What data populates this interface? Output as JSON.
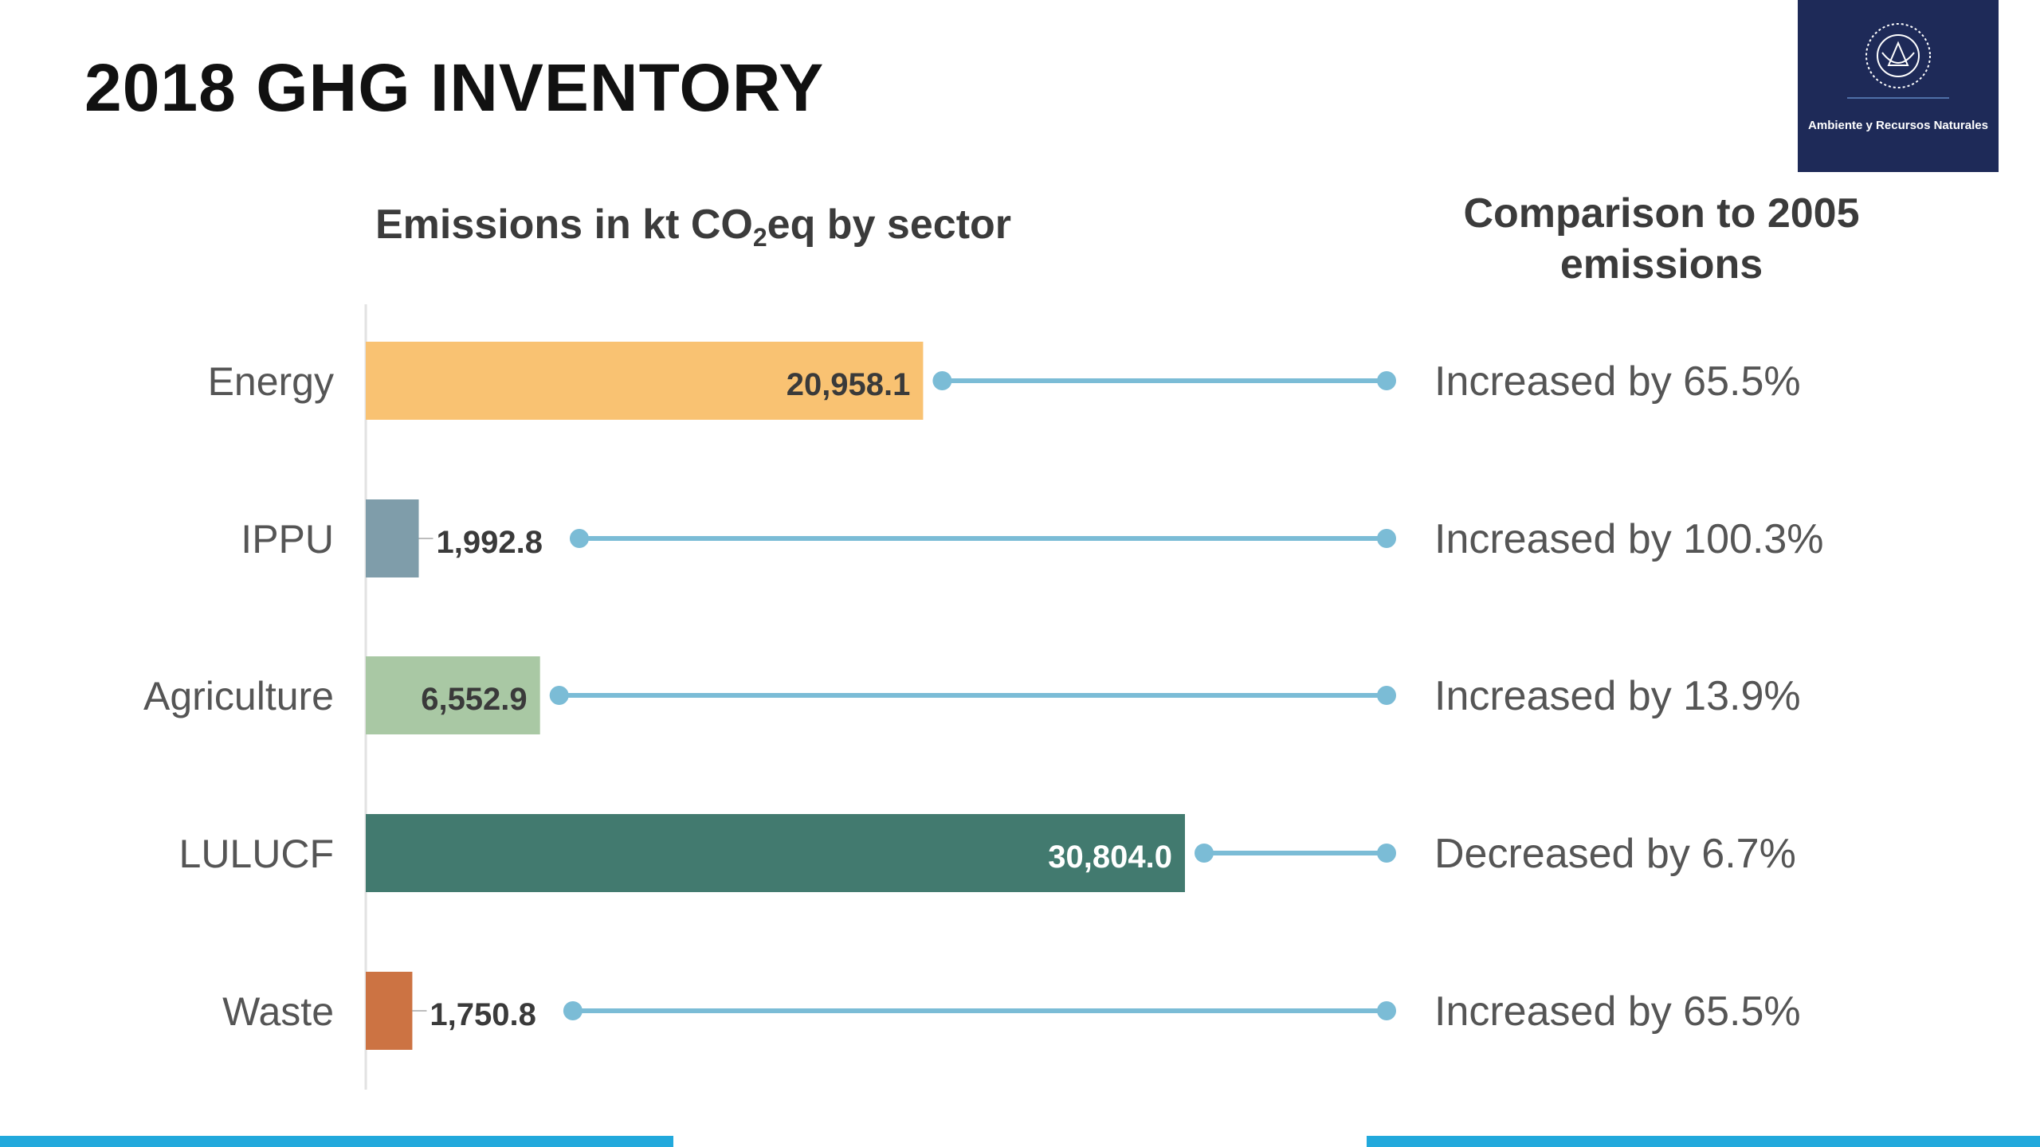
{
  "slide": {
    "title": "2018 GHG INVENTORY",
    "logo_text": "Ambiente y Recursos Naturales"
  },
  "chart_heading": {
    "prefix": "Emissions in kt CO",
    "subscript": "2",
    "suffix": "eq by sector"
  },
  "comparison_heading": "Comparison to 2005 emissions",
  "chart_data": {
    "type": "bar",
    "orientation": "horizontal",
    "title": "Emissions in kt CO2eq by sector",
    "categories": [
      "Energy",
      "IPPU",
      "Agriculture",
      "LULUCF",
      "Waste"
    ],
    "values": [
      20958.1,
      1992.8,
      6552.9,
      30804.0,
      1750.8
    ],
    "value_labels": [
      "20,958.1",
      "1,992.8",
      "6,552.9",
      "30,804.0",
      "1,750.8"
    ],
    "comparisons": [
      "Increased by 65.5%",
      "Increased by 100.3%",
      "Increased by 13.9%",
      "Decreased by 6.7%",
      "Increased by 65.5%"
    ],
    "colors": [
      "#f9c272",
      "#7f9daa",
      "#a9c8a4",
      "#427a6f",
      "#cc7343"
    ],
    "label_colors": [
      "#3a3a3a",
      "#3a3a3a",
      "#3a3a3a",
      "#ffffff",
      "#3a3a3a"
    ],
    "connector_color": "#7bbcd6",
    "xlim": [
      0,
      30804.0
    ],
    "grid": false,
    "legend": "none"
  }
}
